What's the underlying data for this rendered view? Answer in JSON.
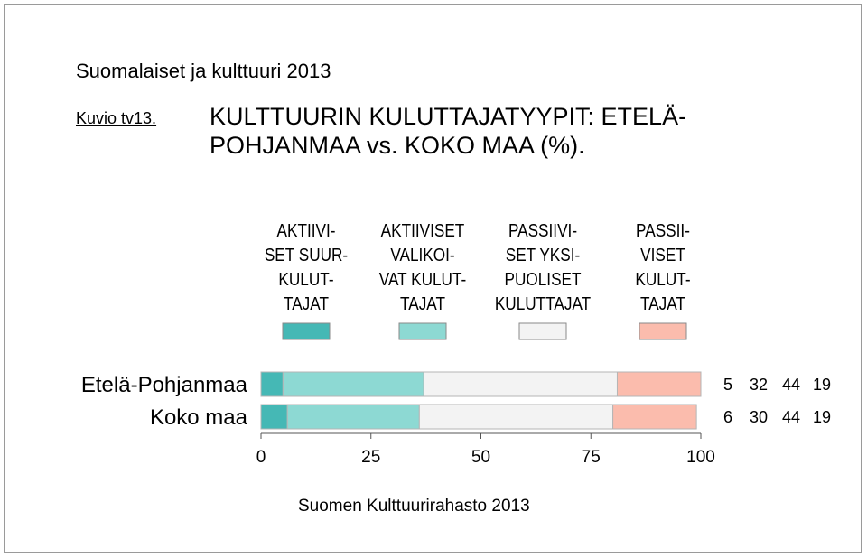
{
  "header": {
    "supertitle": "Suomalaiset ja kulttuuri 2013",
    "figure_label": "Kuvio tv13.",
    "title": "KULTTUURIN KULUTTAJATYYPIT: ETELÄ-POHJANMAA vs. KOKO MAA (%).",
    "source": "Suomen Kulttuurirahasto 2013"
  },
  "chart_data": {
    "type": "bar",
    "orientation": "horizontal",
    "stacked": true,
    "categories": [
      "Etelä-Pohjanmaa",
      "Koko maa"
    ],
    "series": [
      {
        "name": "AKTIIVISET SUURKULUTTAJAT",
        "name_lines": [
          "AKTIIVI-",
          "SET SUUR-",
          "KULUT-",
          "TAJAT"
        ],
        "color": "#45b8b5",
        "values": [
          5,
          6
        ]
      },
      {
        "name": "AKTIIVISET VALIKOIVAT KULUTTAJAT",
        "name_lines": [
          "AKTIIVISET",
          "VALIKOI-",
          "VAT KULUT-",
          "TAJAT"
        ],
        "color": "#8dd9d3",
        "values": [
          32,
          30
        ]
      },
      {
        "name": "PASSIIVISET YKSIPUOLISET KULUTTAJAT",
        "name_lines": [
          "PASSIIVI-",
          "SET YKSI-",
          "PUOLISET",
          "KULUTTAJAT"
        ],
        "color": "#f3f3f3",
        "values": [
          44,
          44
        ]
      },
      {
        "name": "PASSIIVISET KULUTTAJAT",
        "name_lines": [
          "PASSII-",
          "VISET",
          "KULUT-",
          "TAJAT"
        ],
        "color": "#fbbcad",
        "values": [
          19,
          19
        ]
      }
    ],
    "xlim": [
      0,
      100
    ],
    "xticks": [
      0,
      25,
      50,
      75,
      100
    ],
    "value_labels": [
      [
        "5",
        "32",
        "44",
        "19"
      ],
      [
        "6",
        "30",
        "44",
        "19"
      ]
    ],
    "legend_position": "top",
    "grid": false
  }
}
